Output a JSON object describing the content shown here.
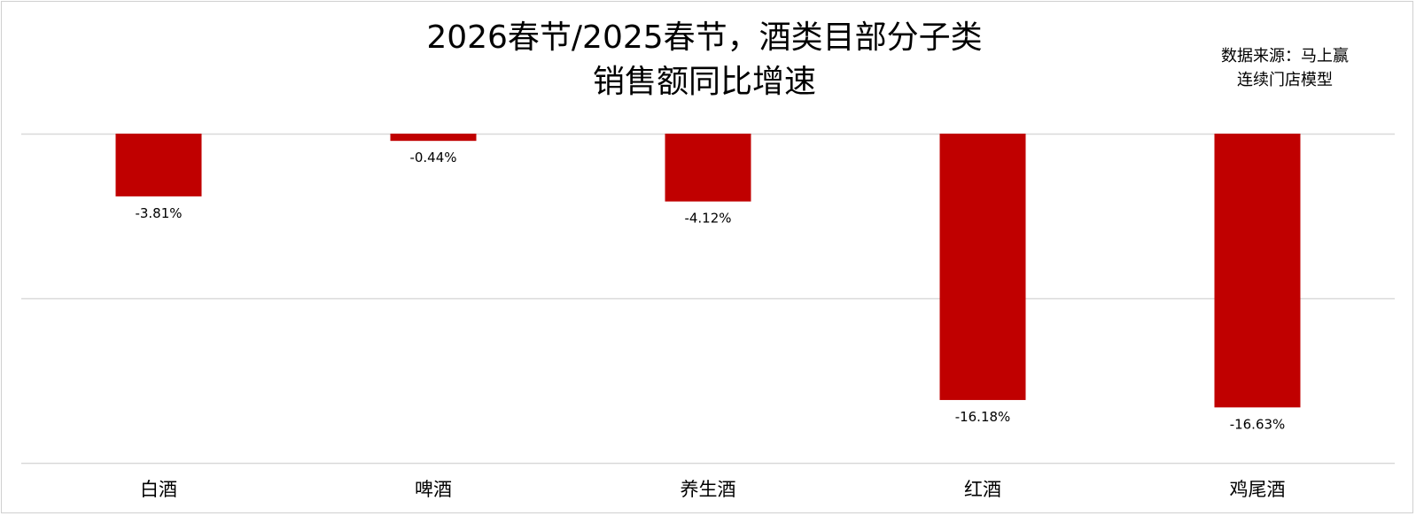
{
  "chart_data": {
    "type": "bar",
    "title_lines": [
      "2026春节/2025春节，酒类目部分子类",
      "销售额同比增速"
    ],
    "source_lines": [
      "数据来源：马上赢",
      "连续门店模型"
    ],
    "categories": [
      "白酒",
      "啤酒",
      "养生酒",
      "红酒",
      "鸡尾酒"
    ],
    "values": [
      -3.81,
      -0.44,
      -4.12,
      -16.18,
      -16.63
    ],
    "data_labels": [
      "-3.81%",
      "-0.44%",
      "-4.12%",
      "-16.18%",
      "-16.63%"
    ],
    "ylim": [
      -20,
      0
    ],
    "grid": true,
    "bar_color": "#C00000",
    "grid_color": "#d9d9d9"
  }
}
